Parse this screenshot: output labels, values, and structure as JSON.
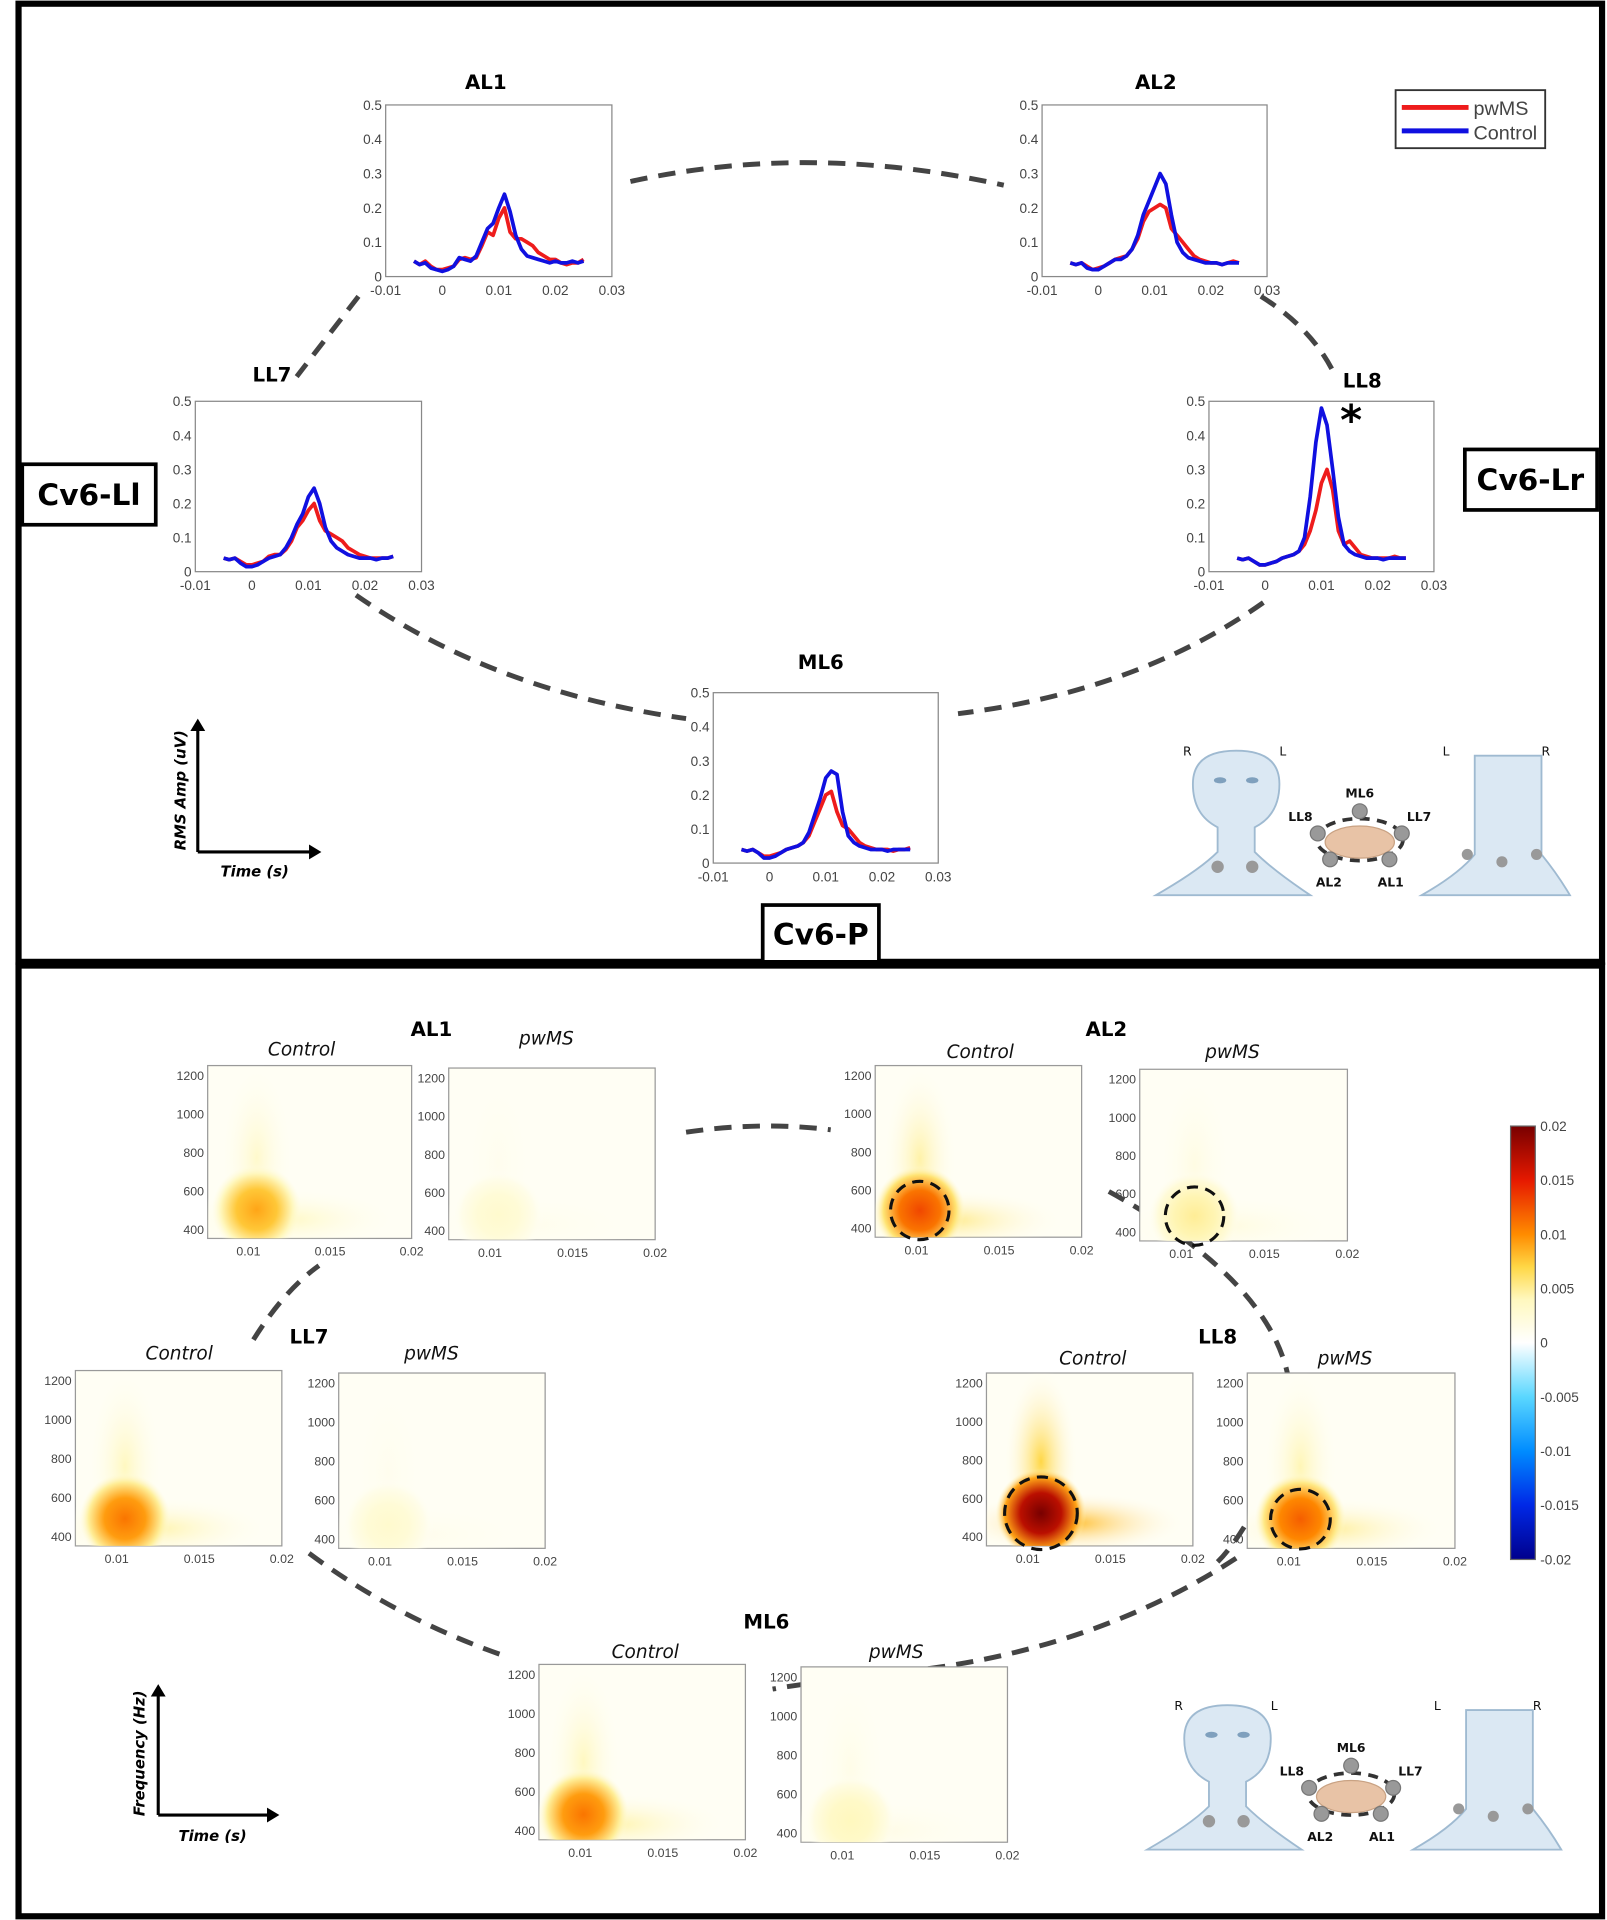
{
  "top_panel": {
    "regions": {
      "left": "Cv6-Ll",
      "right": "Cv6-Lr",
      "bottom": "Cv6-P"
    },
    "axis_indicator": {
      "y_label": "RMS Amp (uV)",
      "x_label": "Time (s)"
    },
    "significance_marker": "*",
    "legend": [
      {
        "name": "pwMS",
        "color": "#ee1c1c"
      },
      {
        "name": "Control",
        "color": "#1010e0"
      }
    ]
  },
  "bottom_panel": {
    "axis_indicator": {
      "y_label": "Frequency (Hz)",
      "x_label": "Time (s)"
    },
    "colorbar": {
      "ticks": [
        "0.02",
        "0.015",
        "0.01",
        "0.005",
        "0",
        "-0.005",
        "-0.01",
        "-0.015",
        "-0.02"
      ],
      "range": [
        -0.02,
        0.02
      ],
      "colormap": "jet"
    }
  },
  "electrode_diagram": {
    "front_labels": [
      "R",
      "L"
    ],
    "back_labels": [
      "L",
      "R"
    ],
    "electrodes": [
      "ML6",
      "LL8",
      "LL7",
      "AL2",
      "AL1"
    ]
  },
  "chart_data": [
    {
      "type": "line",
      "panel": "top",
      "x_ticks": [
        "-0.01",
        "0",
        "0.01",
        "0.02",
        "0.03"
      ],
      "y_ticks": [
        "0",
        "0.1",
        "0.2",
        "0.3",
        "0.4",
        "0.5"
      ],
      "xlim": [
        -0.01,
        0.03
      ],
      "ylim": [
        0,
        0.5
      ],
      "x": [
        -0.005,
        -0.004,
        -0.003,
        -0.002,
        -0.001,
        0,
        0.001,
        0.002,
        0.003,
        0.004,
        0.005,
        0.006,
        0.007,
        0.008,
        0.009,
        0.01,
        0.011,
        0.012,
        0.013,
        0.014,
        0.015,
        0.016,
        0.017,
        0.018,
        0.019,
        0.02,
        0.021,
        0.022,
        0.023,
        0.024,
        0.025
      ],
      "subplots": [
        {
          "title": "AL1",
          "series": [
            {
              "name": "pwMS",
              "values": [
                0.045,
                0.035,
                0.045,
                0.03,
                0.02,
                0.02,
                0.025,
                0.03,
                0.05,
                0.055,
                0.05,
                0.055,
                0.09,
                0.13,
                0.12,
                0.17,
                0.2,
                0.13,
                0.11,
                0.11,
                0.1,
                0.09,
                0.07,
                0.06,
                0.05,
                0.05,
                0.04,
                0.035,
                0.04,
                0.04,
                0.05
              ]
            },
            {
              "name": "Control",
              "values": [
                0.045,
                0.035,
                0.04,
                0.025,
                0.02,
                0.015,
                0.02,
                0.03,
                0.055,
                0.05,
                0.045,
                0.06,
                0.1,
                0.14,
                0.155,
                0.2,
                0.24,
                0.19,
                0.12,
                0.08,
                0.06,
                0.055,
                0.05,
                0.045,
                0.04,
                0.045,
                0.04,
                0.04,
                0.045,
                0.04,
                0.045
              ]
            }
          ]
        },
        {
          "title": "AL2",
          "series": [
            {
              "name": "pwMS",
              "values": [
                0.04,
                0.035,
                0.04,
                0.03,
                0.02,
                0.025,
                0.03,
                0.04,
                0.05,
                0.055,
                0.06,
                0.08,
                0.11,
                0.16,
                0.19,
                0.2,
                0.21,
                0.2,
                0.14,
                0.12,
                0.1,
                0.08,
                0.06,
                0.05,
                0.045,
                0.04,
                0.04,
                0.035,
                0.04,
                0.045,
                0.04
              ]
            },
            {
              "name": "Control",
              "values": [
                0.04,
                0.035,
                0.04,
                0.025,
                0.02,
                0.02,
                0.03,
                0.04,
                0.05,
                0.05,
                0.06,
                0.08,
                0.12,
                0.18,
                0.22,
                0.26,
                0.3,
                0.27,
                0.18,
                0.1,
                0.07,
                0.055,
                0.05,
                0.045,
                0.04,
                0.04,
                0.04,
                0.035,
                0.04,
                0.04,
                0.04
              ]
            }
          ]
        },
        {
          "title": "LL7",
          "series": [
            {
              "name": "pwMS",
              "values": [
                0.04,
                0.035,
                0.04,
                0.03,
                0.02,
                0.02,
                0.025,
                0.03,
                0.045,
                0.05,
                0.05,
                0.065,
                0.09,
                0.13,
                0.15,
                0.18,
                0.2,
                0.15,
                0.12,
                0.11,
                0.1,
                0.09,
                0.07,
                0.06,
                0.05,
                0.045,
                0.04,
                0.04,
                0.04,
                0.04,
                0.045
              ]
            },
            {
              "name": "Control",
              "values": [
                0.04,
                0.035,
                0.04,
                0.025,
                0.015,
                0.015,
                0.02,
                0.03,
                0.04,
                0.045,
                0.05,
                0.07,
                0.1,
                0.14,
                0.17,
                0.22,
                0.245,
                0.2,
                0.13,
                0.09,
                0.07,
                0.06,
                0.05,
                0.045,
                0.04,
                0.04,
                0.04,
                0.035,
                0.04,
                0.04,
                0.045
              ]
            }
          ]
        },
        {
          "title": "LL8",
          "series": [
            {
              "name": "pwMS",
              "values": [
                0.04,
                0.035,
                0.04,
                0.03,
                0.02,
                0.02,
                0.025,
                0.03,
                0.04,
                0.045,
                0.05,
                0.06,
                0.08,
                0.12,
                0.18,
                0.26,
                0.3,
                0.24,
                0.12,
                0.08,
                0.09,
                0.07,
                0.05,
                0.045,
                0.04,
                0.04,
                0.04,
                0.04,
                0.045,
                0.04,
                0.04
              ]
            },
            {
              "name": "Control",
              "values": [
                0.04,
                0.035,
                0.04,
                0.03,
                0.02,
                0.02,
                0.025,
                0.03,
                0.04,
                0.045,
                0.05,
                0.06,
                0.1,
                0.22,
                0.38,
                0.48,
                0.43,
                0.3,
                0.16,
                0.08,
                0.06,
                0.05,
                0.045,
                0.04,
                0.04,
                0.04,
                0.035,
                0.04,
                0.04,
                0.04,
                0.04
              ]
            }
          ]
        },
        {
          "title": "ML6",
          "series": [
            {
              "name": "pwMS",
              "values": [
                0.04,
                0.035,
                0.04,
                0.03,
                0.02,
                0.02,
                0.025,
                0.03,
                0.04,
                0.045,
                0.05,
                0.06,
                0.08,
                0.12,
                0.16,
                0.2,
                0.21,
                0.15,
                0.11,
                0.1,
                0.08,
                0.06,
                0.05,
                0.045,
                0.04,
                0.04,
                0.04,
                0.035,
                0.04,
                0.04,
                0.045
              ]
            },
            {
              "name": "Control",
              "values": [
                0.04,
                0.035,
                0.04,
                0.03,
                0.015,
                0.015,
                0.02,
                0.03,
                0.04,
                0.045,
                0.05,
                0.06,
                0.09,
                0.14,
                0.19,
                0.25,
                0.27,
                0.26,
                0.15,
                0.08,
                0.06,
                0.05,
                0.045,
                0.04,
                0.04,
                0.04,
                0.035,
                0.04,
                0.04,
                0.04,
                0.04
              ]
            }
          ]
        }
      ]
    },
    {
      "type": "heatmap",
      "panel": "bottom",
      "x_ticks": [
        "0.01",
        "0.015",
        "0.02"
      ],
      "y_ticks": [
        "400",
        "600",
        "800",
        "1000",
        "1200"
      ],
      "xlim": [
        0.0075,
        0.02
      ],
      "ylim": [
        350,
        1250
      ],
      "subplots": [
        {
          "title": "AL1",
          "maps": [
            {
              "condition": "Control",
              "peak": 0.009,
              "peak_time": 0.0105,
              "peak_freq": 500,
              "highlighted": false
            },
            {
              "condition": "pwMS",
              "peak": 0.003,
              "peak_time": 0.0105,
              "peak_freq": 480,
              "highlighted": false
            }
          ]
        },
        {
          "title": "AL2",
          "maps": [
            {
              "condition": "Control",
              "peak": 0.013,
              "peak_time": 0.0102,
              "peak_freq": 490,
              "highlighted": true
            },
            {
              "condition": "pwMS",
              "peak": 0.005,
              "peak_time": 0.0108,
              "peak_freq": 480,
              "highlighted": true
            }
          ]
        },
        {
          "title": "LL7",
          "maps": [
            {
              "condition": "Control",
              "peak": 0.011,
              "peak_time": 0.0105,
              "peak_freq": 490,
              "highlighted": false
            },
            {
              "condition": "pwMS",
              "peak": 0.003,
              "peak_time": 0.0105,
              "peak_freq": 470,
              "highlighted": false
            }
          ]
        },
        {
          "title": "LL8",
          "maps": [
            {
              "condition": "Control",
              "peak": 0.02,
              "peak_time": 0.0108,
              "peak_freq": 520,
              "highlighted": true
            },
            {
              "condition": "pwMS",
              "peak": 0.012,
              "peak_time": 0.0107,
              "peak_freq": 500,
              "highlighted": true
            }
          ]
        },
        {
          "title": "ML6",
          "maps": [
            {
              "condition": "Control",
              "peak": 0.011,
              "peak_time": 0.0102,
              "peak_freq": 480,
              "highlighted": false
            },
            {
              "condition": "pwMS",
              "peak": 0.004,
              "peak_time": 0.0105,
              "peak_freq": 460,
              "highlighted": false
            }
          ]
        }
      ]
    }
  ]
}
